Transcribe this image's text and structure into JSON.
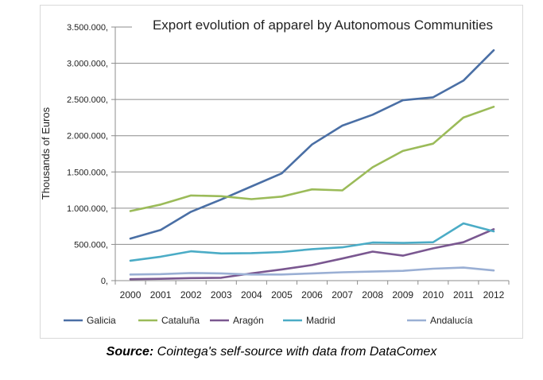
{
  "chart_data": {
    "type": "line",
    "title": "Export evolution of apparel by Autonomous Communities",
    "ylabel": "Thousands of Euros",
    "xlabel": "",
    "x": [
      "2000",
      "2001",
      "2002",
      "2003",
      "2004",
      "2005",
      "2006",
      "2007",
      "2008",
      "2009",
      "2010",
      "2011",
      "2012"
    ],
    "ylim": [
      0,
      3500000
    ],
    "yticks": [
      0,
      500000,
      1000000,
      1500000,
      2000000,
      2500000,
      3000000,
      3500000
    ],
    "ytick_labels": [
      "0,",
      "500.000,",
      "1.000.000,",
      "1.500.000,",
      "2.000.000,",
      "2.500.000,",
      "3.000.000,",
      "3.500.000,"
    ],
    "grid": "horizontal",
    "legend_position": "bottom",
    "series": [
      {
        "name": "Galicia",
        "color": "#4a6fa5",
        "values": [
          580000,
          700000,
          950000,
          1120000,
          1300000,
          1480000,
          1880000,
          2140000,
          2290000,
          2490000,
          2530000,
          2760000,
          3180000
        ]
      },
      {
        "name": "Cataluña",
        "color": "#9bbb59",
        "values": [
          960000,
          1050000,
          1175000,
          1165000,
          1125000,
          1160000,
          1260000,
          1245000,
          1565000,
          1790000,
          1890000,
          2250000,
          2400000
        ]
      },
      {
        "name": "Aragón",
        "color": "#7a5790",
        "values": [
          20000,
          25000,
          35000,
          40000,
          100000,
          155000,
          215000,
          305000,
          400000,
          345000,
          445000,
          530000,
          710000
        ]
      },
      {
        "name": "Madrid",
        "color": "#4bacc6",
        "values": [
          275000,
          330000,
          405000,
          375000,
          380000,
          395000,
          435000,
          460000,
          525000,
          520000,
          530000,
          790000,
          680000
        ]
      },
      {
        "name": "Andalucía",
        "color": "#9aafd4",
        "values": [
          85000,
          90000,
          105000,
          100000,
          85000,
          85000,
          100000,
          115000,
          125000,
          135000,
          165000,
          180000,
          140000
        ]
      }
    ]
  },
  "caption": {
    "label": "Source:",
    "text": " Cointega's self-source with data from DataComex"
  }
}
